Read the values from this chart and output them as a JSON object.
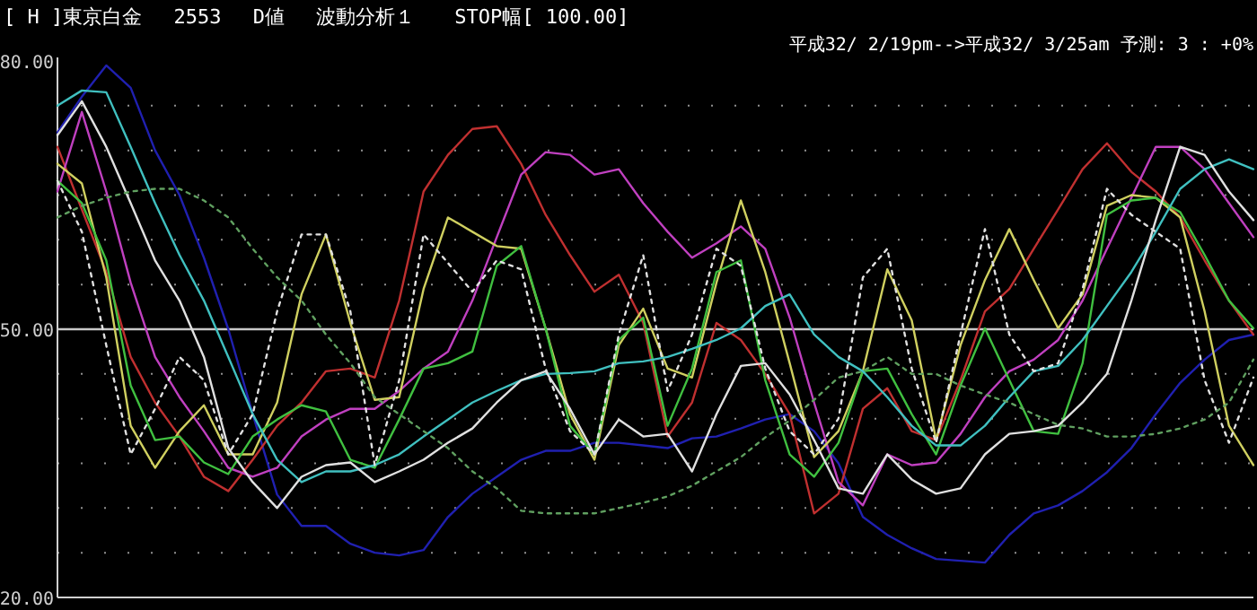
{
  "chart_data": {
    "type": "line",
    "title": "[ H ]東京白金　 2553　 D値　 波動分析１　　STOP幅[ 100.00]",
    "subtitle": "平成32/ 2/19pm-->平成32/ 3/25am 予測: 3 :  +0%",
    "categories": [
      null,
      null,
      null,
      null,
      null,
      null,
      null,
      null,
      null,
      null,
      null,
      null,
      null,
      null,
      null,
      null,
      null,
      null,
      null,
      null,
      null,
      null,
      null,
      null,
      null,
      null,
      null,
      null,
      null,
      null,
      null,
      null,
      null,
      null,
      null,
      null,
      null,
      null,
      null,
      null,
      null,
      null,
      null,
      null,
      null,
      null,
      null,
      null,
      null,
      null
    ],
    "ylim": [
      20,
      80
    ],
    "yticks": [
      {
        "value": 20,
        "label": "20.00"
      },
      {
        "value": 25,
        "label": null
      },
      {
        "value": 30,
        "label": null
      },
      {
        "value": 35,
        "label": null
      },
      {
        "value": 40,
        "label": null
      },
      {
        "value": 45,
        "label": null
      },
      {
        "value": 50,
        "label": "50.00"
      },
      {
        "value": 55,
        "label": null
      },
      {
        "value": 60,
        "label": null
      },
      {
        "value": 65,
        "label": null
      },
      {
        "value": 70,
        "label": null
      },
      {
        "value": 75,
        "label": null
      },
      {
        "value": 80,
        "label": "80.00"
      }
    ],
    "grid": "y",
    "line_style": "solid",
    "ref_lines": [
      {
        "axis": "y",
        "value": 50,
        "color": "#c8c8c8"
      }
    ],
    "series": [
      {
        "color": "#2020b0",
        "values": [
          72,
          76,
          79.5,
          77,
          70,
          65,
          58,
          50,
          40.5,
          31.5,
          28,
          28,
          26,
          25,
          24.7,
          25.3,
          29,
          31.6,
          33.5,
          35.4,
          36.4,
          36.4,
          37.3,
          37.3,
          37,
          36.7,
          37.8,
          38,
          38.9,
          39.9,
          40.5,
          38.6,
          35,
          29,
          27,
          25.5,
          24.3,
          24.1,
          23.9,
          27,
          29.4,
          30.3,
          31.9,
          34,
          36.7,
          40.5,
          44,
          46.6,
          48.8,
          49.4
        ]
      },
      {
        "color": "#c03030",
        "values": [
          70.4,
          63.4,
          56.4,
          46.9,
          41.8,
          38,
          33.5,
          31.9,
          35.4,
          39.2,
          41.8,
          45.3,
          45.6,
          44.6,
          53.2,
          65.4,
          69.5,
          72.4,
          72.7,
          68.5,
          62.8,
          58.3,
          54.2,
          56.1,
          50.7,
          38,
          41.8,
          50.7,
          48.8,
          45,
          40.5,
          29.4,
          31.6,
          41.1,
          43.4,
          38.6,
          37.6,
          44.3,
          52,
          54.5,
          59,
          63.4,
          67.9,
          70.8,
          67.6,
          65.4,
          62.5,
          57.7,
          53.2,
          49.4
        ]
      },
      {
        "color": "#c040c0",
        "values": [
          65.4,
          74.3,
          65.4,
          55.2,
          46.9,
          42.4,
          38.6,
          34.5,
          33.5,
          34.5,
          38,
          39.9,
          41.1,
          41.1,
          43.1,
          45.6,
          47.5,
          53.2,
          60.3,
          67.3,
          69.8,
          69.5,
          67.3,
          67.9,
          64.1,
          60.9,
          58,
          59.6,
          61.5,
          59,
          51.3,
          41.8,
          32.9,
          30.3,
          36,
          34.8,
          35.1,
          38.3,
          42.4,
          45.3,
          46.6,
          48.8,
          53.2,
          59,
          64.7,
          70.4,
          70.4,
          67.9,
          64.1,
          60.3
        ]
      },
      {
        "color": "#d0d060",
        "values": [
          68.5,
          66.3,
          55.8,
          39.2,
          34.5,
          38.6,
          41.5,
          36,
          36,
          41.8,
          53.9,
          60.6,
          50.7,
          42.1,
          42.4,
          54.5,
          62.5,
          60.9,
          59.3,
          59,
          50.1,
          40.5,
          35.4,
          48.2,
          52.3,
          45.6,
          44.6,
          55.2,
          64.4,
          56.4,
          46.2,
          35.7,
          38.6,
          45.3,
          56.7,
          51,
          37.6,
          48.2,
          55.5,
          61.2,
          55.5,
          50.1,
          53.9,
          63.8,
          65,
          64.7,
          62.5,
          52,
          39.2,
          34.8
        ]
      },
      {
        "color": "#40c040",
        "values": [
          66.6,
          64.1,
          57.7,
          43.7,
          37.6,
          38,
          35.1,
          33.8,
          38,
          39.9,
          41.5,
          40.8,
          35.4,
          34.5,
          39.9,
          45.6,
          46.2,
          47.5,
          57.1,
          59.3,
          50.1,
          39.2,
          36,
          48.8,
          51.3,
          39.2,
          45.6,
          56.4,
          57.7,
          44.3,
          36,
          33.5,
          37.3,
          45.3,
          45.6,
          40.5,
          36,
          43.7,
          50.1,
          44.3,
          38.6,
          38.3,
          46.2,
          62.8,
          64.4,
          64.7,
          63.1,
          58.3,
          53.2,
          50.1
        ]
      },
      {
        "color": "#40c0c0",
        "values": [
          75,
          76.7,
          76.5,
          70.4,
          64.1,
          58.3,
          53.2,
          46.9,
          40.5,
          35.4,
          32.9,
          34.1,
          34.1,
          34.8,
          36,
          38,
          39.9,
          41.8,
          43.1,
          44.3,
          45,
          45.1,
          45.3,
          46.2,
          46.4,
          46.9,
          47.8,
          48.8,
          50.1,
          52.6,
          53.9,
          49.4,
          46.9,
          45.3,
          42.4,
          39.2,
          37,
          37,
          39.2,
          42.4,
          45.3,
          45.9,
          48.8,
          52.6,
          56.4,
          60.9,
          65.7,
          67.9,
          69,
          67.9
        ]
      },
      {
        "color": "#e0e0e0",
        "values": [
          71.7,
          75.5,
          70.4,
          64.1,
          57.7,
          53.2,
          46.9,
          36.7,
          32.9,
          30,
          33.5,
          34.8,
          35.1,
          32.9,
          34.1,
          35.4,
          37.3,
          38.9,
          41.8,
          44.3,
          45.3,
          41.1,
          36,
          39.9,
          38,
          38.3,
          34.1,
          40.5,
          45.9,
          46.2,
          42.7,
          37.6,
          32.2,
          31.6,
          36,
          33.2,
          31.6,
          32.2,
          36,
          38.3,
          38.6,
          39.2,
          41.8,
          45,
          53.2,
          62.2,
          70.4,
          69.5,
          65.4,
          62.2
        ]
      },
      {
        "color": "#e0e0e0",
        "line_style": "dotted",
        "values": [
          66.6,
          60.9,
          48.2,
          36,
          41.1,
          46.9,
          44.3,
          36,
          40.5,
          52,
          60.6,
          60.6,
          52,
          34.8,
          44.3,
          60.6,
          57.4,
          54.2,
          57.7,
          56.7,
          45.6,
          38.6,
          36,
          49.4,
          58.3,
          43.1,
          49.4,
          59,
          57.1,
          45.6,
          38.6,
          36,
          40,
          55.8,
          59,
          45.6,
          37.3,
          49.4,
          61.2,
          49.4,
          45.3,
          46.2,
          54.5,
          65.7,
          62.8,
          60.9,
          59,
          44.3,
          37.3,
          44.6
        ]
      },
      {
        "color": "#60a060",
        "line_style": "dotted",
        "values": [
          62.5,
          63.8,
          64.7,
          65.4,
          65.7,
          65.7,
          64.4,
          62.5,
          59,
          55.8,
          53.2,
          49.4,
          46.2,
          42.4,
          40.5,
          38.6,
          36.7,
          34.1,
          32.2,
          29.7,
          29.4,
          29.4,
          29.4,
          30,
          30.6,
          31.3,
          32.5,
          34.1,
          35.7,
          37.9,
          39.8,
          42.1,
          44.6,
          45.3,
          46.9,
          45,
          45,
          43.7,
          42.7,
          41.8,
          40.5,
          39.3,
          38.9,
          38,
          38,
          38.3,
          38.9,
          39.9,
          41.8,
          46.6
        ]
      }
    ]
  }
}
